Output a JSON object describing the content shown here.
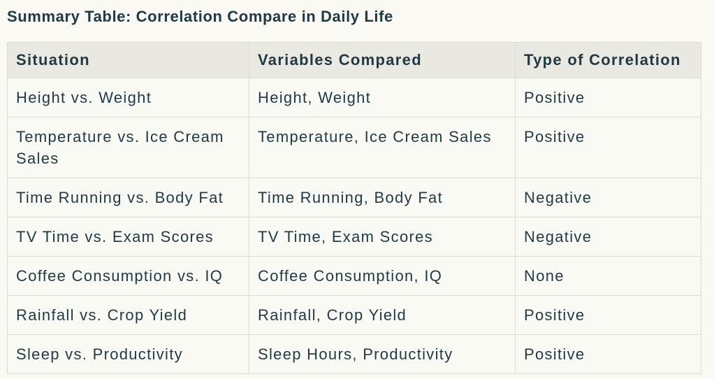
{
  "page": {
    "title": "Summary Table: Correlation Compare in Daily Life"
  },
  "colors": {
    "page_background": "#FAF9F3",
    "header_background": "#E9E8E1",
    "cell_background": "#FAFAF5",
    "border": "#DCDBD3",
    "text": "#1E3A44"
  },
  "table": {
    "columns": [
      "Situation",
      "Variables Compared",
      "Type of Correlation"
    ],
    "rows": [
      {
        "situation": "Height vs. Weight",
        "variables": "Height, Weight",
        "correlation": "Positive"
      },
      {
        "situation": "Temperature vs. Ice Cream Sales",
        "variables": "Temperature, Ice Cream Sales",
        "correlation": "Positive"
      },
      {
        "situation": "Time Running vs. Body Fat",
        "variables": "Time Running, Body Fat",
        "correlation": "Negative"
      },
      {
        "situation": "TV Time vs. Exam Scores",
        "variables": "TV Time, Exam Scores",
        "correlation": "Negative"
      },
      {
        "situation": "Coffee Consumption vs. IQ",
        "variables": "Coffee Consumption, IQ",
        "correlation": "None"
      },
      {
        "situation": "Rainfall vs. Crop Yield",
        "variables": "Rainfall, Crop Yield",
        "correlation": "Positive"
      },
      {
        "situation": "Sleep vs. Productivity",
        "variables": "Sleep Hours, Productivity",
        "correlation": "Positive"
      }
    ]
  }
}
